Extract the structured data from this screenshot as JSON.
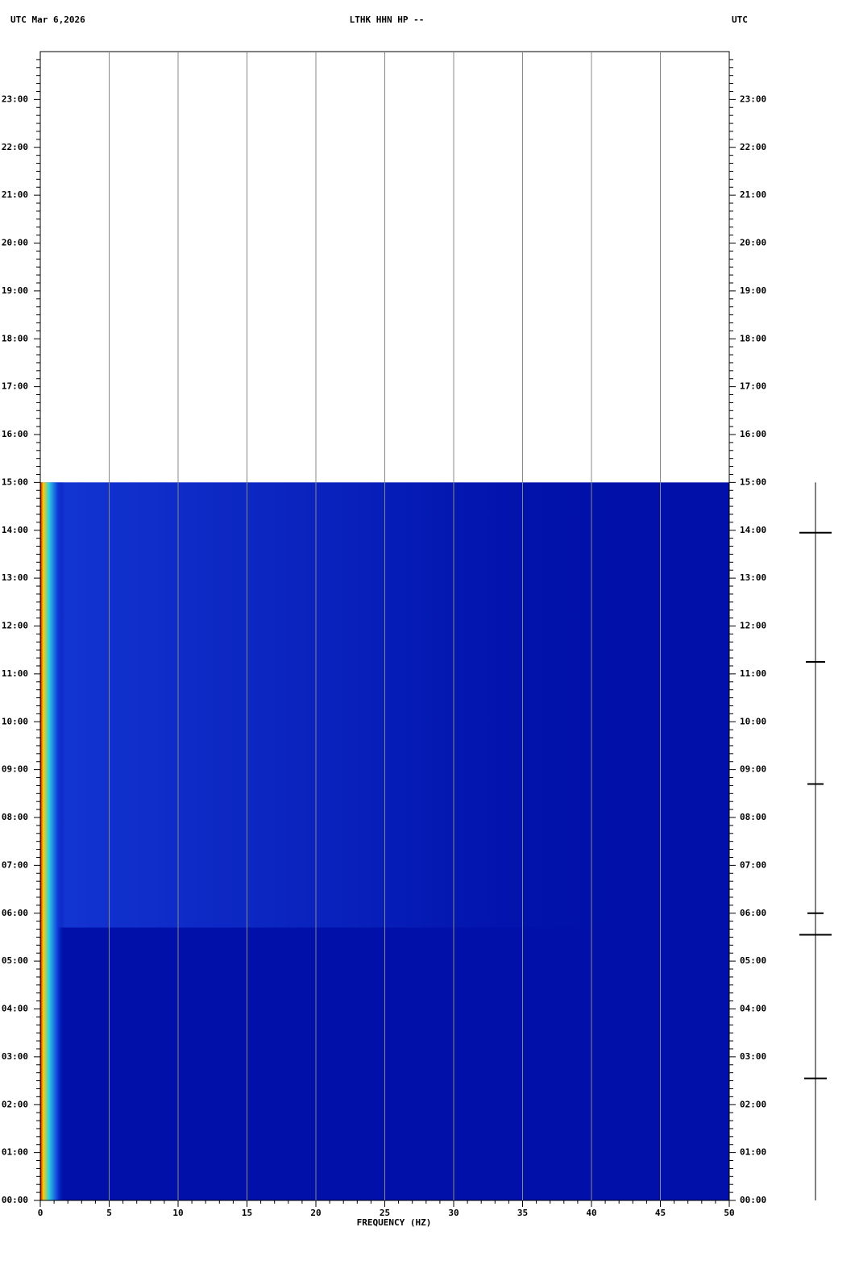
{
  "chart_data": {
    "type": "spectrogram",
    "title": "LTHK HHN HP --",
    "left_header": "UTC  Mar 6,2026",
    "right_header": "UTC",
    "x_label": "FREQUENCY (HZ)",
    "xlim": [
      0,
      50
    ],
    "xticks": [
      0,
      5,
      10,
      15,
      20,
      25,
      30,
      35,
      40,
      45,
      50
    ],
    "ylim": [
      0,
      24
    ],
    "yticks": [
      {
        "value": 0,
        "label": "00:00"
      },
      {
        "value": 1,
        "label": "01:00"
      },
      {
        "value": 2,
        "label": "02:00"
      },
      {
        "value": 3,
        "label": "03:00"
      },
      {
        "value": 4,
        "label": "04:00"
      },
      {
        "value": 5,
        "label": "05:00"
      },
      {
        "value": 6,
        "label": "06:00"
      },
      {
        "value": 7,
        "label": "07:00"
      },
      {
        "value": 8,
        "label": "08:00"
      },
      {
        "value": 9,
        "label": "09:00"
      },
      {
        "value": 10,
        "label": "10:00"
      },
      {
        "value": 11,
        "label": "11:00"
      },
      {
        "value": 12,
        "label": "12:00"
      },
      {
        "value": 13,
        "label": "13:00"
      },
      {
        "value": 14,
        "label": "14:00"
      },
      {
        "value": 15,
        "label": "15:00"
      },
      {
        "value": 16,
        "label": "16:00"
      },
      {
        "value": 17,
        "label": "17:00"
      },
      {
        "value": 18,
        "label": "18:00"
      },
      {
        "value": 19,
        "label": "19:00"
      },
      {
        "value": 20,
        "label": "20:00"
      },
      {
        "value": 21,
        "label": "21:00"
      },
      {
        "value": 22,
        "label": "22:00"
      },
      {
        "value": 23,
        "label": "23:00"
      }
    ],
    "data_ylim": [
      0,
      15
    ],
    "color": "#0010a8",
    "grid": true
  }
}
